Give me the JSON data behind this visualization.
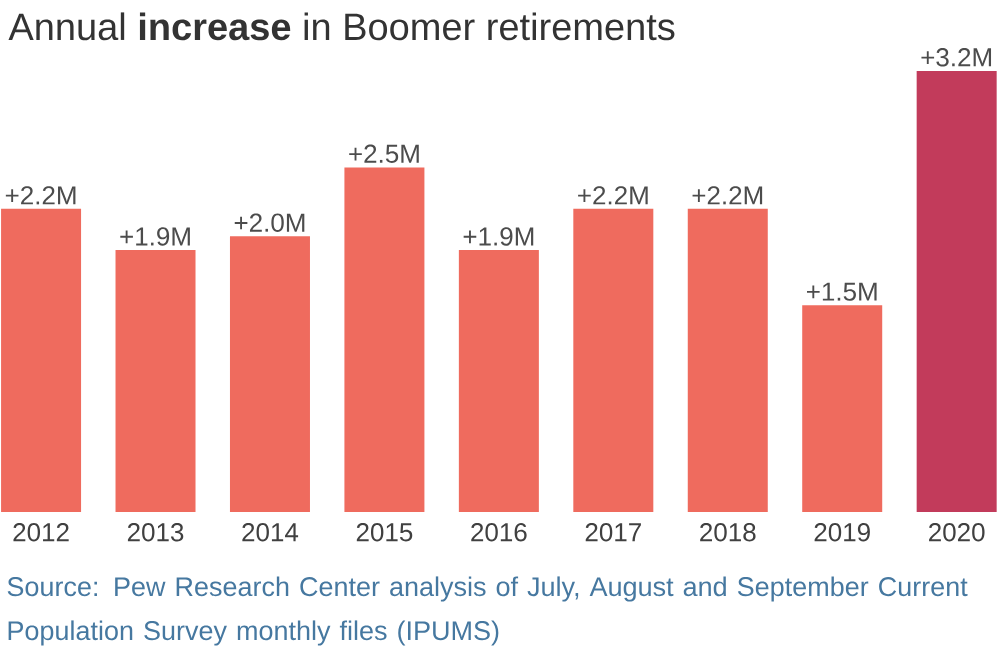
{
  "chart_data": {
    "type": "bar",
    "title": "Annual **increase** in Boomer retirements",
    "categories": [
      "2012",
      "2013",
      "2014",
      "2015",
      "2016",
      "2017",
      "2018",
      "2019",
      "2020"
    ],
    "values": [
      2.2,
      1.9,
      2.0,
      2.5,
      1.9,
      2.2,
      2.2,
      1.5,
      3.2
    ],
    "value_labels": [
      "+2.2M",
      "+1.9M",
      "+2.0M",
      "+2.5M",
      "+1.9M",
      "+2.2M",
      "+2.2M",
      "+1.5M",
      "+3.2M"
    ],
    "colors": [
      "#ef6b5e",
      "#ef6b5e",
      "#ef6b5e",
      "#ef6b5e",
      "#ef6b5e",
      "#ef6b5e",
      "#ef6b5e",
      "#ef6b5e",
      "#c23b5b"
    ],
    "annotations": [
      "Source: Pew Research Center analysis of July, August and September Current Population Survey monthly files (IPUMS)"
    ]
  }
}
